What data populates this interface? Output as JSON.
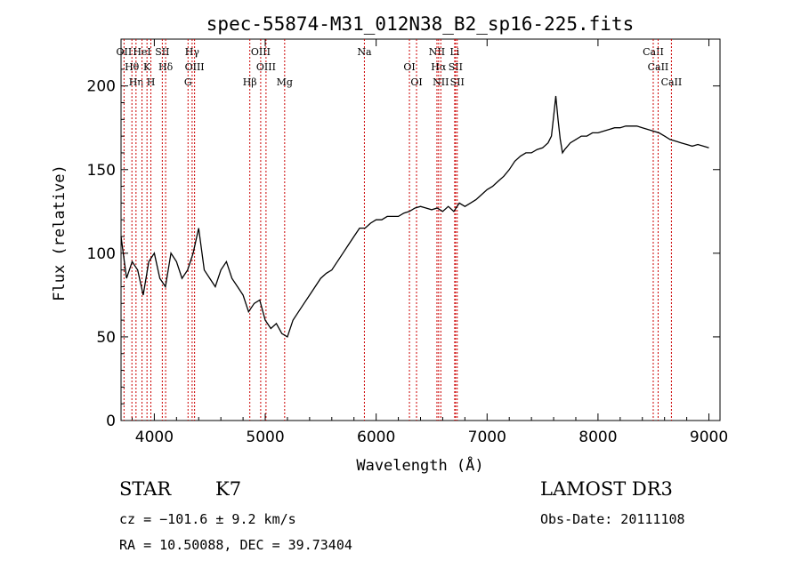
{
  "chart_data": {
    "type": "line",
    "title": "spec-55874-M31_012N38_B2_sp16-225.fits",
    "xlabel": "Wavelength (Å)",
    "ylabel": "Flux (relative)",
    "xlim": [
      3700,
      9100
    ],
    "ylim": [
      0,
      228
    ],
    "xticks": [
      4000,
      5000,
      6000,
      7000,
      8000,
      9000
    ],
    "yticks": [
      0,
      50,
      100,
      150,
      200
    ],
    "grid": false,
    "series": [
      {
        "name": "flux",
        "x": [
          3700,
          3750,
          3800,
          3850,
          3900,
          3950,
          4000,
          4050,
          4100,
          4150,
          4200,
          4250,
          4300,
          4350,
          4400,
          4450,
          4500,
          4550,
          4600,
          4650,
          4700,
          4750,
          4800,
          4850,
          4900,
          4950,
          5000,
          5050,
          5100,
          5150,
          5200,
          5250,
          5300,
          5350,
          5400,
          5450,
          5500,
          5550,
          5600,
          5650,
          5700,
          5750,
          5800,
          5850,
          5900,
          5950,
          6000,
          6050,
          6100,
          6150,
          6200,
          6250,
          6300,
          6350,
          6400,
          6450,
          6500,
          6550,
          6600,
          6650,
          6700,
          6750,
          6800,
          6850,
          6900,
          6950,
          7000,
          7050,
          7100,
          7150,
          7200,
          7250,
          7300,
          7350,
          7400,
          7450,
          7500,
          7550,
          7580,
          7600,
          7620,
          7640,
          7660,
          7680,
          7700,
          7750,
          7800,
          7850,
          7900,
          7950,
          8000,
          8050,
          8100,
          8150,
          8200,
          8250,
          8300,
          8350,
          8400,
          8450,
          8500,
          8550,
          8600,
          8650,
          8700,
          8750,
          8800,
          8850,
          8900,
          8950,
          9000
        ],
        "y": [
          110,
          85,
          95,
          90,
          75,
          95,
          100,
          85,
          80,
          100,
          95,
          85,
          90,
          100,
          115,
          90,
          85,
          80,
          90,
          95,
          85,
          80,
          75,
          65,
          70,
          72,
          60,
          55,
          58,
          52,
          50,
          60,
          65,
          70,
          75,
          80,
          85,
          88,
          90,
          95,
          100,
          105,
          110,
          115,
          115,
          118,
          120,
          120,
          122,
          122,
          122,
          124,
          125,
          127,
          128,
          127,
          126,
          127,
          125,
          128,
          125,
          130,
          128,
          130,
          132,
          135,
          138,
          140,
          143,
          146,
          150,
          155,
          158,
          160,
          160,
          162,
          163,
          166,
          170,
          182,
          194,
          180,
          168,
          160,
          162,
          166,
          168,
          170,
          170,
          172,
          172,
          173,
          174,
          175,
          175,
          176,
          176,
          176,
          175,
          174,
          173,
          172,
          170,
          168,
          167,
          166,
          165,
          164,
          165,
          164,
          163
        ]
      }
    ],
    "lines": [
      {
        "name": "OII",
        "wave": 3727
      },
      {
        "name": "Hθ",
        "wave": 3798
      },
      {
        "name": "Hη",
        "wave": 3835
      },
      {
        "name": "HeI",
        "wave": 3889
      },
      {
        "name": "K",
        "wave": 3934
      },
      {
        "name": "H",
        "wave": 3969
      },
      {
        "name": "SII",
        "wave": 4072
      },
      {
        "name": "Hδ",
        "wave": 4102
      },
      {
        "name": "G",
        "wave": 4304
      },
      {
        "name": "Hγ",
        "wave": 4341
      },
      {
        "name": "OIII",
        "wave": 4363
      },
      {
        "name": "Hβ",
        "wave": 4861
      },
      {
        "name": "OIII",
        "wave": 4959
      },
      {
        "name": "OIII",
        "wave": 5007
      },
      {
        "name": "Mg",
        "wave": 5175
      },
      {
        "name": "Na",
        "wave": 5894
      },
      {
        "name": "OI",
        "wave": 6300
      },
      {
        "name": "OI",
        "wave": 6364
      },
      {
        "name": "NII",
        "wave": 6548
      },
      {
        "name": "Hα",
        "wave": 6563
      },
      {
        "name": "NII",
        "wave": 6583
      },
      {
        "name": "Li",
        "wave": 6708
      },
      {
        "name": "SII",
        "wave": 6716
      },
      {
        "name": "SII",
        "wave": 6731
      },
      {
        "name": "CaII",
        "wave": 8498
      },
      {
        "name": "CaII",
        "wave": 8542
      },
      {
        "name": "CaII",
        "wave": 8662
      }
    ]
  },
  "info": {
    "class": "STAR",
    "subclass": "K7",
    "survey": "LAMOST DR3",
    "redshift": "cz = −101.6 ± 9.2 km/s",
    "obs_date": "Obs-Date: 20111108",
    "coords": "RA =  10.50088, DEC =  39.73404"
  },
  "colors": {
    "line": "#000000",
    "marker": "#cc0000"
  }
}
